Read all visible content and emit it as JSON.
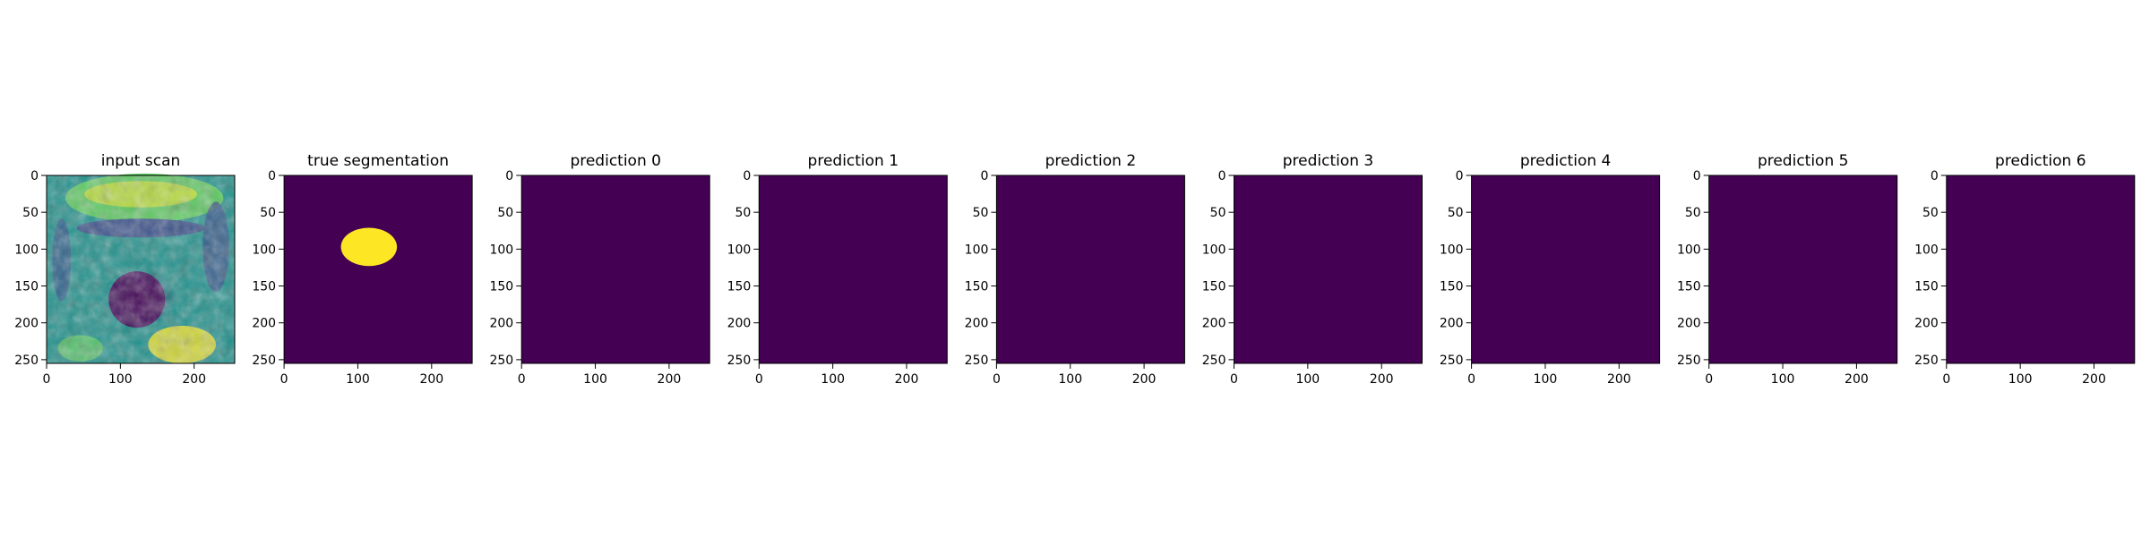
{
  "figure": {
    "panels": [
      {
        "title": "input scan",
        "kind": "mri-scan"
      },
      {
        "title": "true segmentation",
        "kind": "mask"
      },
      {
        "title": "prediction 0",
        "kind": "empty"
      },
      {
        "title": "prediction 1",
        "kind": "empty"
      },
      {
        "title": "prediction 2",
        "kind": "empty"
      },
      {
        "title": "prediction 3",
        "kind": "empty"
      },
      {
        "title": "prediction 4",
        "kind": "empty"
      },
      {
        "title": "prediction 5",
        "kind": "empty"
      },
      {
        "title": "prediction 6",
        "kind": "empty"
      }
    ],
    "x_ticks": [
      0,
      100,
      200
    ],
    "y_ticks": [
      0,
      50,
      100,
      150,
      200,
      250
    ],
    "axis_range": [
      0,
      255
    ],
    "mask_blob": {
      "cx": 115,
      "cy": 97,
      "rx": 38,
      "ry": 26
    },
    "colors": {
      "background": "#440154",
      "foreground": "#fde725",
      "scan_palette": [
        "#440154",
        "#3b528b",
        "#21918c",
        "#5ec962",
        "#fde725"
      ]
    }
  }
}
